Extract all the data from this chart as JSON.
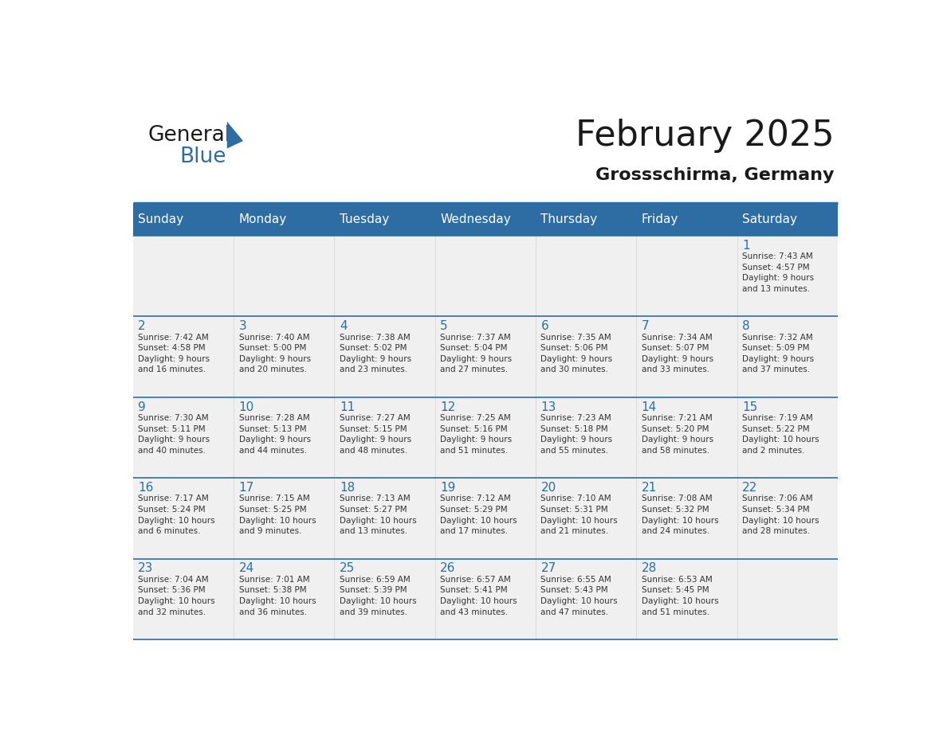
{
  "title": "February 2025",
  "subtitle": "Grossschirma, Germany",
  "header_bg_color": "#2E6DA4",
  "header_text_color": "#FFFFFF",
  "cell_bg_color": "#F0F0F0",
  "day_number_color": "#2E6DA4",
  "info_text_color": "#333333",
  "border_color": "#2E6DA4",
  "days_of_week": [
    "Sunday",
    "Monday",
    "Tuesday",
    "Wednesday",
    "Thursday",
    "Friday",
    "Saturday"
  ],
  "weeks": [
    [
      {
        "day": "",
        "info": ""
      },
      {
        "day": "",
        "info": ""
      },
      {
        "day": "",
        "info": ""
      },
      {
        "day": "",
        "info": ""
      },
      {
        "day": "",
        "info": ""
      },
      {
        "day": "",
        "info": ""
      },
      {
        "day": "1",
        "info": "Sunrise: 7:43 AM\nSunset: 4:57 PM\nDaylight: 9 hours\nand 13 minutes."
      }
    ],
    [
      {
        "day": "2",
        "info": "Sunrise: 7:42 AM\nSunset: 4:58 PM\nDaylight: 9 hours\nand 16 minutes."
      },
      {
        "day": "3",
        "info": "Sunrise: 7:40 AM\nSunset: 5:00 PM\nDaylight: 9 hours\nand 20 minutes."
      },
      {
        "day": "4",
        "info": "Sunrise: 7:38 AM\nSunset: 5:02 PM\nDaylight: 9 hours\nand 23 minutes."
      },
      {
        "day": "5",
        "info": "Sunrise: 7:37 AM\nSunset: 5:04 PM\nDaylight: 9 hours\nand 27 minutes."
      },
      {
        "day": "6",
        "info": "Sunrise: 7:35 AM\nSunset: 5:06 PM\nDaylight: 9 hours\nand 30 minutes."
      },
      {
        "day": "7",
        "info": "Sunrise: 7:34 AM\nSunset: 5:07 PM\nDaylight: 9 hours\nand 33 minutes."
      },
      {
        "day": "8",
        "info": "Sunrise: 7:32 AM\nSunset: 5:09 PM\nDaylight: 9 hours\nand 37 minutes."
      }
    ],
    [
      {
        "day": "9",
        "info": "Sunrise: 7:30 AM\nSunset: 5:11 PM\nDaylight: 9 hours\nand 40 minutes."
      },
      {
        "day": "10",
        "info": "Sunrise: 7:28 AM\nSunset: 5:13 PM\nDaylight: 9 hours\nand 44 minutes."
      },
      {
        "day": "11",
        "info": "Sunrise: 7:27 AM\nSunset: 5:15 PM\nDaylight: 9 hours\nand 48 minutes."
      },
      {
        "day": "12",
        "info": "Sunrise: 7:25 AM\nSunset: 5:16 PM\nDaylight: 9 hours\nand 51 minutes."
      },
      {
        "day": "13",
        "info": "Sunrise: 7:23 AM\nSunset: 5:18 PM\nDaylight: 9 hours\nand 55 minutes."
      },
      {
        "day": "14",
        "info": "Sunrise: 7:21 AM\nSunset: 5:20 PM\nDaylight: 9 hours\nand 58 minutes."
      },
      {
        "day": "15",
        "info": "Sunrise: 7:19 AM\nSunset: 5:22 PM\nDaylight: 10 hours\nand 2 minutes."
      }
    ],
    [
      {
        "day": "16",
        "info": "Sunrise: 7:17 AM\nSunset: 5:24 PM\nDaylight: 10 hours\nand 6 minutes."
      },
      {
        "day": "17",
        "info": "Sunrise: 7:15 AM\nSunset: 5:25 PM\nDaylight: 10 hours\nand 9 minutes."
      },
      {
        "day": "18",
        "info": "Sunrise: 7:13 AM\nSunset: 5:27 PM\nDaylight: 10 hours\nand 13 minutes."
      },
      {
        "day": "19",
        "info": "Sunrise: 7:12 AM\nSunset: 5:29 PM\nDaylight: 10 hours\nand 17 minutes."
      },
      {
        "day": "20",
        "info": "Sunrise: 7:10 AM\nSunset: 5:31 PM\nDaylight: 10 hours\nand 21 minutes."
      },
      {
        "day": "21",
        "info": "Sunrise: 7:08 AM\nSunset: 5:32 PM\nDaylight: 10 hours\nand 24 minutes."
      },
      {
        "day": "22",
        "info": "Sunrise: 7:06 AM\nSunset: 5:34 PM\nDaylight: 10 hours\nand 28 minutes."
      }
    ],
    [
      {
        "day": "23",
        "info": "Sunrise: 7:04 AM\nSunset: 5:36 PM\nDaylight: 10 hours\nand 32 minutes."
      },
      {
        "day": "24",
        "info": "Sunrise: 7:01 AM\nSunset: 5:38 PM\nDaylight: 10 hours\nand 36 minutes."
      },
      {
        "day": "25",
        "info": "Sunrise: 6:59 AM\nSunset: 5:39 PM\nDaylight: 10 hours\nand 39 minutes."
      },
      {
        "day": "26",
        "info": "Sunrise: 6:57 AM\nSunset: 5:41 PM\nDaylight: 10 hours\nand 43 minutes."
      },
      {
        "day": "27",
        "info": "Sunrise: 6:55 AM\nSunset: 5:43 PM\nDaylight: 10 hours\nand 47 minutes."
      },
      {
        "day": "28",
        "info": "Sunrise: 6:53 AM\nSunset: 5:45 PM\nDaylight: 10 hours\nand 51 minutes."
      },
      {
        "day": "",
        "info": ""
      }
    ]
  ],
  "logo_text_general": "General",
  "logo_text_blue": "Blue",
  "logo_color_general": "#1a1a1a",
  "logo_color_blue": "#2E6DA4",
  "logo_triangle_color": "#2E6DA4",
  "title_color": "#1a1a1a",
  "title_fontsize": 32,
  "subtitle_fontsize": 16,
  "header_fontsize": 11,
  "day_num_fontsize": 11,
  "info_fontsize": 7.5
}
